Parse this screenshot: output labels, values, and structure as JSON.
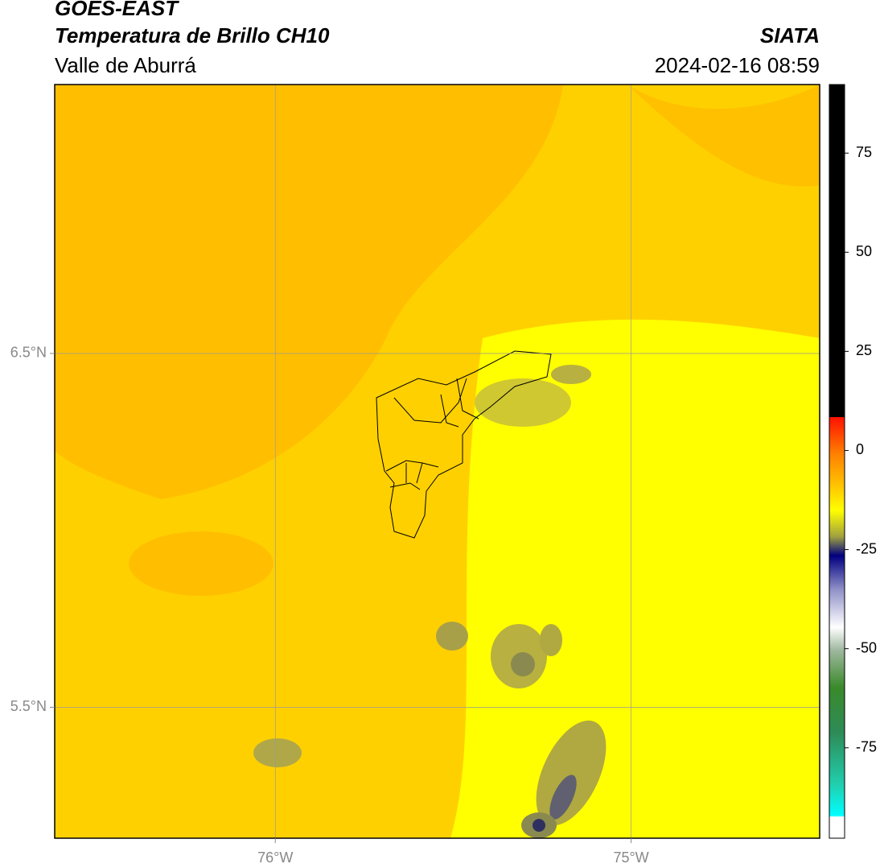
{
  "header": {
    "title": "GOES-EAST",
    "subtitle": "Temperatura de Brillo CH10",
    "region": "Valle de Aburrá",
    "source": "SIATA",
    "timestamp": "2024-02-16 08:59"
  },
  "map": {
    "lon_lim": [
      -76.62,
      -74.47
    ],
    "lat_lim": [
      5.13,
      7.26
    ],
    "lon_ticks": [
      {
        "value": -76,
        "label": "76°W"
      },
      {
        "value": -75,
        "label": "75°W"
      }
    ],
    "lat_ticks": [
      {
        "value": 6.5,
        "label": "6.5°N"
      },
      {
        "value": 5.5,
        "label": "5.5°N"
      }
    ],
    "grid": true
  },
  "colorbar": {
    "lim": [
      -97.8,
      92.3
    ],
    "ticks": [
      75,
      50,
      25,
      0,
      -25,
      -50,
      -75
    ]
  }
}
